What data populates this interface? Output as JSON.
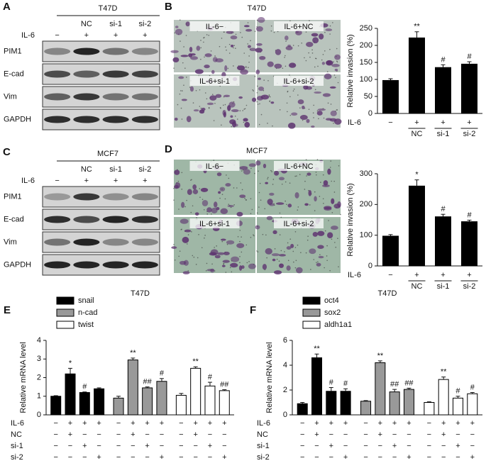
{
  "blots": [
    {
      "letter": "A",
      "title": "T47D",
      "treatment_label": "IL-6",
      "lane_groups": [
        "NC",
        "si-1",
        "si-2"
      ],
      "il6": [
        "−",
        "+",
        "+",
        "+"
      ],
      "proteins": [
        "PIM1",
        "E-cad",
        "Vim",
        "GAPDH"
      ]
    },
    {
      "letter": "C",
      "title": "MCF7",
      "treatment_label": "IL-6",
      "lane_groups": [
        "NC",
        "si-1",
        "si-2"
      ],
      "il6": [
        "−",
        "+",
        "+",
        "+"
      ],
      "proteins": [
        "PIM1",
        "E-cad",
        "Vim",
        "GAPDH"
      ]
    }
  ],
  "micrographs": [
    {
      "letter": "B",
      "title": "T47D",
      "images": [
        "IL-6−",
        "IL-6+NC",
        "IL-6+si-1",
        "IL-6+si-2"
      ]
    },
    {
      "letter": "D",
      "title": "MCF7",
      "images": [
        "IL-6−",
        "IL-6+NC",
        "IL-6+si-1",
        "IL-6+si-2"
      ]
    }
  ],
  "chart_data": [
    {
      "type": "bar",
      "ylabel": "Relative invasion (%)",
      "treatment_label": "IL-6",
      "il6": [
        "−",
        "+",
        "+",
        "+"
      ],
      "categories": [
        null,
        "NC",
        "si-1",
        "si-2"
      ],
      "values": [
        97,
        222,
        135,
        145
      ],
      "errors": [
        5,
        18,
        8,
        7
      ],
      "significance": [
        null,
        "**",
        "#",
        "#"
      ],
      "color": "#000000",
      "ylim": [
        0,
        250
      ],
      "yticks": [
        0,
        50,
        100,
        150,
        200,
        250
      ]
    },
    {
      "type": "bar",
      "ylabel": "Relative invasion (%)",
      "treatment_label": "IL-6",
      "il6": [
        "−",
        "+",
        "+",
        "+"
      ],
      "categories": [
        null,
        "NC",
        "si-1",
        "si-2"
      ],
      "values": [
        97,
        260,
        160,
        144
      ],
      "errors": [
        5,
        20,
        8,
        5
      ],
      "significance": [
        null,
        "*",
        "#",
        "#"
      ],
      "color": "#000000",
      "ylim": [
        0,
        300
      ],
      "yticks": [
        0,
        100,
        200,
        300
      ]
    },
    {
      "type": "bar",
      "letter": "E",
      "title": "T47D",
      "ylabel": "Relative mRNA level",
      "ylim": [
        0,
        4
      ],
      "yticks": [
        0,
        1,
        2,
        3,
        4
      ],
      "treatment_rows": [
        {
          "label": "IL-6",
          "signs": [
            "−",
            "+",
            "+",
            "+"
          ]
        },
        {
          "label": "NC",
          "signs": [
            "−",
            "+",
            "−",
            "−"
          ]
        },
        {
          "label": "si-1",
          "signs": [
            "−",
            "−",
            "+",
            "−"
          ]
        },
        {
          "label": "si-2",
          "signs": [
            "−",
            "−",
            "−",
            "+"
          ]
        }
      ],
      "series": [
        {
          "name": "snail",
          "color": "#000000",
          "values": [
            1.0,
            2.2,
            1.2,
            1.4
          ],
          "errors": [
            0.03,
            0.3,
            0.03,
            0.05
          ],
          "significance": [
            null,
            "*",
            "#",
            null
          ]
        },
        {
          "name": "n-cad",
          "color": "#999999",
          "values": [
            0.9,
            2.95,
            1.45,
            1.8
          ],
          "errors": [
            0.1,
            0.1,
            0.05,
            0.15
          ],
          "significance": [
            null,
            "**",
            "##",
            "#"
          ]
        },
        {
          "name": "twist",
          "color": "#ffffff",
          "values": [
            1.05,
            2.5,
            1.55,
            1.3
          ],
          "errors": [
            0.1,
            0.08,
            0.2,
            0.05
          ],
          "significance": [
            null,
            "**",
            "#",
            "##"
          ]
        }
      ]
    },
    {
      "type": "bar",
      "letter": "F",
      "title": "T47D",
      "ylabel": "Relative mRNA level",
      "ylim": [
        0,
        6
      ],
      "yticks": [
        0,
        2,
        4,
        6
      ],
      "treatment_rows": [
        {
          "label": "IL-6",
          "signs": [
            "−",
            "+",
            "+",
            "+"
          ]
        },
        {
          "label": "NC",
          "signs": [
            "−",
            "+",
            "−",
            "−"
          ]
        },
        {
          "label": "si-1",
          "signs": [
            "−",
            "−",
            "+",
            "−"
          ]
        },
        {
          "label": "si-2",
          "signs": [
            "−",
            "−",
            "−",
            "+"
          ]
        }
      ],
      "series": [
        {
          "name": "oct4",
          "color": "#000000",
          "values": [
            0.9,
            4.6,
            1.9,
            1.9
          ],
          "errors": [
            0.1,
            0.3,
            0.3,
            0.2
          ],
          "significance": [
            null,
            "**",
            "#",
            "#"
          ]
        },
        {
          "name": "sox2",
          "color": "#999999",
          "values": [
            1.1,
            4.2,
            1.85,
            2.05
          ],
          "errors": [
            0.05,
            0.15,
            0.2,
            0.1
          ],
          "significance": [
            null,
            "**",
            "##",
            "##"
          ]
        },
        {
          "name": "aldh1a1",
          "color": "#ffffff",
          "values": [
            1.0,
            2.85,
            1.35,
            1.7
          ],
          "errors": [
            0.05,
            0.2,
            0.15,
            0.1
          ],
          "significance": [
            null,
            "**",
            "#",
            "#"
          ]
        }
      ]
    }
  ]
}
